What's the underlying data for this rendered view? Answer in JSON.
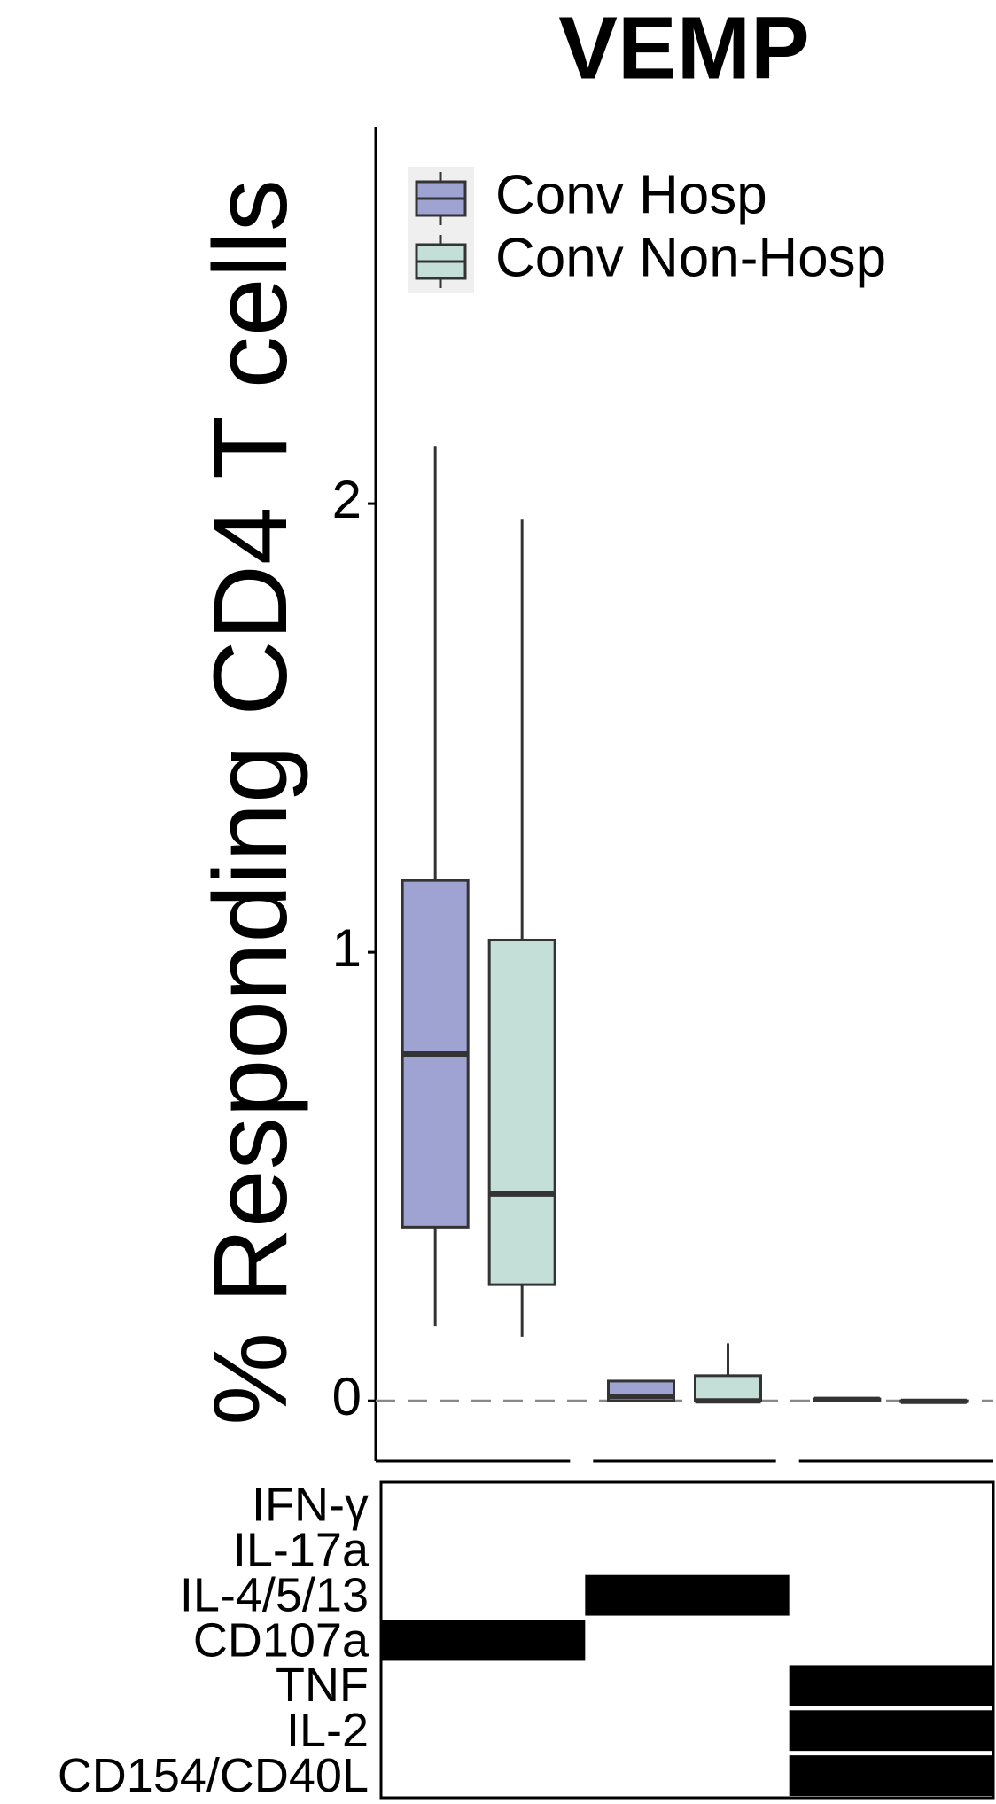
{
  "chart_data": {
    "type": "box",
    "title": "VEMP",
    "y_label": "% Responding CD4 T cells",
    "ylim": [
      -0.134,
      2.84
    ],
    "yticks": [
      0,
      1,
      2
    ],
    "reference_line": 0,
    "series": [
      {
        "name": "Conv Hosp",
        "color": "#9fa3d1",
        "boxes": [
          {
            "low": 0.166,
            "q1": 0.387,
            "median": 0.773,
            "q3": 1.16,
            "high": 2.128
          },
          {
            "low": 0,
            "q1": 0,
            "median": 0.01,
            "q3": 0.044,
            "high": 0.044
          },
          {
            "low": 0,
            "q1": 0,
            "median": 0.003,
            "q3": 0.004,
            "high": 0.004
          }
        ]
      },
      {
        "name": "Conv Non-Hosp",
        "color": "#c4dfd8",
        "boxes": [
          {
            "low": 0.143,
            "q1": 0.259,
            "median": 0.461,
            "q3": 1.027,
            "high": 1.964
          },
          {
            "low": 0,
            "q1": 0,
            "median": 0,
            "q3": 0.056,
            "high": 0.128
          },
          {
            "low": -0.002,
            "q1": -0.002,
            "median": -0.001,
            "q3": 0,
            "high": 0
          }
        ]
      }
    ],
    "legend": "top-left",
    "markers": [
      "IFN-γ",
      "IL-17a",
      "IL-4/5/13",
      "CD107a",
      "TNF",
      "IL-2",
      "CD154/CD40L"
    ],
    "combinations": [
      [
        0,
        0,
        0,
        1,
        0,
        0,
        0
      ],
      [
        0,
        0,
        1,
        0,
        0,
        0,
        0
      ],
      [
        0,
        0,
        0,
        0,
        1,
        1,
        1
      ]
    ]
  }
}
